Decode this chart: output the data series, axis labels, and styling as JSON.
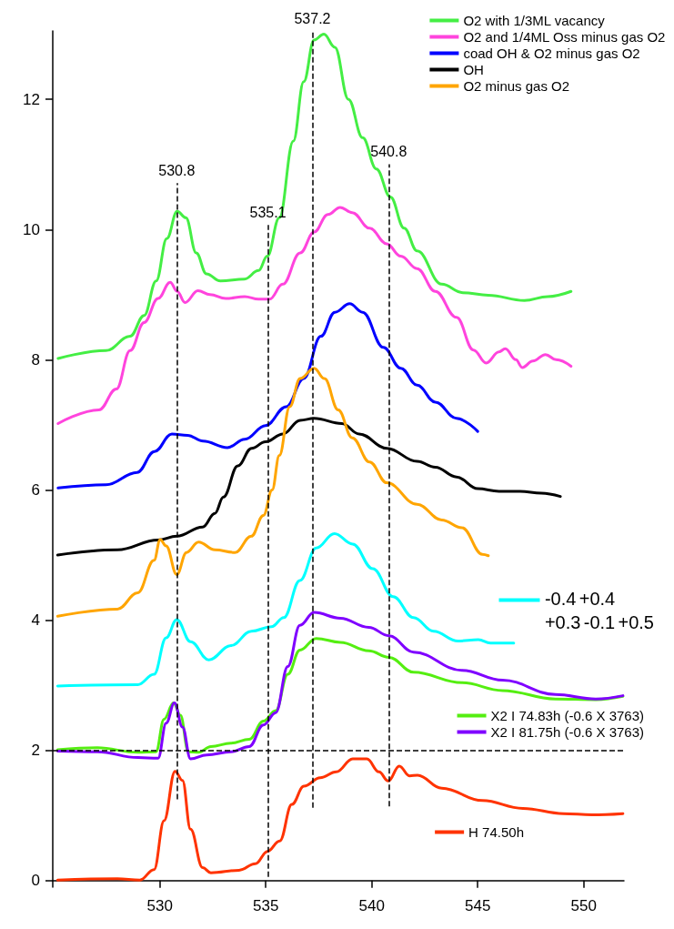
{
  "chart_data": {
    "type": "line",
    "xlim": [
      524.95,
      551.9
    ],
    "ylim": [
      -0.1,
      13.05
    ],
    "xticks": [
      530,
      535,
      540,
      545,
      550
    ],
    "yticks": [
      0,
      2,
      4,
      6,
      8,
      10,
      12
    ],
    "grid": false,
    "legend": "top right",
    "marker": "none",
    "line_style": "solid",
    "series": [
      {
        "name": "O2 with 1/3ML vacancy",
        "color": "#44ee44",
        "x": [
          525.2,
          527.46,
          528.6,
          529.26,
          529.83,
          530.33,
          530.82,
          531.23,
          531.72,
          532.2,
          532.86,
          534.0,
          534.66,
          535.07,
          535.64,
          536.3,
          536.79,
          537.28,
          537.74,
          538.26,
          538.9,
          539.57,
          540.22,
          540.88,
          541.53,
          542.14,
          543.3,
          544.3,
          545.5,
          547.2,
          548.3,
          549.4
        ],
        "values": [
          8.02,
          8.14,
          8.36,
          8.68,
          9.21,
          9.86,
          10.28,
          10.18,
          9.64,
          9.32,
          9.21,
          9.24,
          9.37,
          9.59,
          10.18,
          11.36,
          12.27,
          12.91,
          13.0,
          12.8,
          12.0,
          11.41,
          10.93,
          10.5,
          10.02,
          9.67,
          9.16,
          9.03,
          8.99,
          8.91,
          8.97,
          9.05
        ]
      },
      {
        "name": "O2 and 1/4ML Oss minus gas O2",
        "color": "#ff44dd",
        "x": [
          525.2,
          527.13,
          527.95,
          528.6,
          529.26,
          529.92,
          530.49,
          530.82,
          531.19,
          531.8,
          532.37,
          533.11,
          534.01,
          534.66,
          535.18,
          535.8,
          536.62,
          537.28,
          537.93,
          538.51,
          539.08,
          539.9,
          540.71,
          541.37,
          542.14,
          543.0,
          544.0,
          544.8,
          545.4,
          546.0,
          546.3,
          546.8,
          547.1,
          547.6,
          548.2,
          548.7,
          549.4
        ],
        "values": [
          7.02,
          7.23,
          7.55,
          8.14,
          8.57,
          8.94,
          9.19,
          9.05,
          8.88,
          9.06,
          9.0,
          8.94,
          8.97,
          8.93,
          8.93,
          9.16,
          9.64,
          9.96,
          10.23,
          10.34,
          10.26,
          10.02,
          9.78,
          9.59,
          9.4,
          9.05,
          8.65,
          8.15,
          7.95,
          8.12,
          8.17,
          8.0,
          7.88,
          7.98,
          8.08,
          8.0,
          7.9
        ]
      },
      {
        "name": "coad OH & O2 minus gas O2",
        "color": "#0000ff",
        "x": [
          525.2,
          527.46,
          528.93,
          529.75,
          530.57,
          531.31,
          532.04,
          533.19,
          534.01,
          534.99,
          535.97,
          536.79,
          537.6,
          538.26,
          538.96,
          539.57,
          540.55,
          541.37,
          542.14,
          543.0,
          544.0,
          545.0
        ],
        "values": [
          6.03,
          6.08,
          6.27,
          6.59,
          6.86,
          6.84,
          6.75,
          6.65,
          6.78,
          6.99,
          7.28,
          7.71,
          8.36,
          8.73,
          8.86,
          8.73,
          8.19,
          7.87,
          7.61,
          7.35,
          7.1,
          6.9
        ]
      },
      {
        "name": "OH",
        "color": "#000000",
        "x": [
          525.18,
          528.0,
          529.92,
          530.8,
          532.02,
          532.6,
          533.0,
          533.68,
          534.33,
          534.99,
          535.81,
          536.62,
          537.28,
          538.59,
          539.41,
          540.71,
          542.14,
          543.0,
          544.0,
          545.0,
          546.0,
          547.0,
          548.0,
          548.9
        ],
        "values": [
          5.0,
          5.08,
          5.23,
          5.29,
          5.43,
          5.64,
          5.89,
          6.37,
          6.64,
          6.74,
          6.86,
          7.07,
          7.1,
          7.02,
          6.86,
          6.64,
          6.44,
          6.35,
          6.2,
          6.02,
          5.98,
          5.98,
          5.95,
          5.9
        ]
      },
      {
        "name": "O2 minus gas O2",
        "color": "#ffa500",
        "x": [
          525.18,
          528.0,
          528.96,
          529.73,
          530.02,
          530.3,
          530.8,
          531.26,
          531.83,
          532.6,
          533.55,
          534.32,
          534.89,
          535.3,
          535.64,
          536.13,
          536.62,
          537.28,
          537.77,
          538.42,
          539.08,
          539.9,
          540.71,
          542.14,
          543.3,
          544.26,
          545.22,
          545.5
        ],
        "values": [
          4.06,
          4.17,
          4.42,
          4.92,
          5.24,
          5.14,
          4.7,
          5.04,
          5.2,
          5.08,
          5.04,
          5.29,
          5.61,
          6.0,
          6.53,
          7.28,
          7.71,
          7.87,
          7.71,
          7.23,
          6.8,
          6.43,
          6.11,
          5.78,
          5.54,
          5.42,
          5.01,
          4.99
        ]
      },
      {
        "color": "#00ffff",
        "x": [
          525.18,
          528.96,
          529.73,
          530.3,
          530.8,
          531.45,
          532.31,
          533.36,
          534.32,
          535.27,
          535.85,
          536.61,
          537.38,
          538.24,
          539.1,
          540.05,
          541.01,
          541.97,
          542.92,
          544.07,
          545.03,
          545.6,
          546.7
        ],
        "values": [
          2.99,
          3.01,
          3.17,
          3.73,
          4.01,
          3.67,
          3.39,
          3.61,
          3.83,
          3.9,
          4.04,
          4.61,
          5.11,
          5.33,
          5.17,
          4.79,
          4.36,
          4.04,
          3.83,
          3.68,
          3.7,
          3.65,
          3.65
        ]
      },
      {
        "name": "X2 I 74.83h (-0.6 X 3763)",
        "color": "#55ee11",
        "x": [
          525.18,
          527.05,
          528.96,
          529.82,
          530.2,
          530.65,
          530.97,
          531.35,
          531.83,
          532.41,
          533.36,
          534.22,
          534.89,
          535.47,
          536.04,
          536.61,
          537.38,
          538.52,
          539.86,
          540.82,
          541.97,
          544.26,
          546.17,
          548.66,
          550.57,
          551.85
        ],
        "values": [
          2.01,
          2.04,
          1.97,
          1.98,
          2.48,
          2.73,
          2.54,
          1.98,
          1.97,
          2.06,
          2.11,
          2.17,
          2.45,
          2.61,
          3.17,
          3.54,
          3.72,
          3.66,
          3.53,
          3.43,
          3.2,
          3.04,
          2.92,
          2.79,
          2.78,
          2.83
        ]
      },
      {
        "name": "X2 I 81.75h (-0.6 X 3763)",
        "color": "#7f00ff",
        "x": [
          525.18,
          527.05,
          528.96,
          529.92,
          530.3,
          530.69,
          531.07,
          531.45,
          532.21,
          533.36,
          534.22,
          534.89,
          535.47,
          536.04,
          536.61,
          537.28,
          538.52,
          539.86,
          540.82,
          541.97,
          544.26,
          546.17,
          548.66,
          550.57,
          551.85
        ],
        "values": [
          1.99,
          1.98,
          1.89,
          1.88,
          2.42,
          2.73,
          2.36,
          1.87,
          1.93,
          1.98,
          2.06,
          2.39,
          2.58,
          3.29,
          3.92,
          4.12,
          4.03,
          3.89,
          3.76,
          3.51,
          3.23,
          3.08,
          2.86,
          2.79,
          2.84
        ]
      },
      {
        "name": "H 74.50h",
        "color": "#ff3300",
        "x": [
          525.18,
          528.0,
          529.06,
          529.73,
          530.2,
          530.72,
          531.07,
          531.45,
          532.02,
          532.41,
          533.74,
          534.51,
          535.08,
          535.66,
          536.23,
          536.8,
          537.57,
          538.33,
          539.1,
          539.77,
          540.34,
          540.78,
          541.3,
          541.78,
          542.16,
          543.3,
          545.22,
          547.13,
          549.04,
          550.38,
          551.85
        ],
        "values": [
          0.01,
          0.03,
          0.01,
          0.17,
          0.92,
          1.68,
          1.54,
          0.79,
          0.2,
          0.12,
          0.16,
          0.26,
          0.45,
          0.61,
          1.17,
          1.45,
          1.58,
          1.67,
          1.87,
          1.87,
          1.67,
          1.53,
          1.76,
          1.61,
          1.62,
          1.42,
          1.23,
          1.11,
          1.03,
          1.01,
          1.03
        ]
      }
    ],
    "ref_lines": [
      {
        "axis": "x",
        "value": 530.8,
        "label": "530.8",
        "line_style": "dashed",
        "color": "#000000"
      },
      {
        "axis": "x",
        "value": 535.1,
        "label": "535.1",
        "line_style": "dashed",
        "color": "#000000"
      },
      {
        "axis": "x",
        "value": 537.2,
        "label": "537.2",
        "line_style": "dashed",
        "color": "#000000"
      },
      {
        "axis": "x",
        "value": 540.8,
        "label": "540.8",
        "line_style": "dashed",
        "color": "#000000"
      },
      {
        "axis": "y",
        "value": 2,
        "line_style": "dashed",
        "color": "#000000"
      }
    ],
    "annotations": [
      "-0.4",
      "+0.4",
      "+0.3",
      "-0.1",
      "+0.5"
    ]
  }
}
